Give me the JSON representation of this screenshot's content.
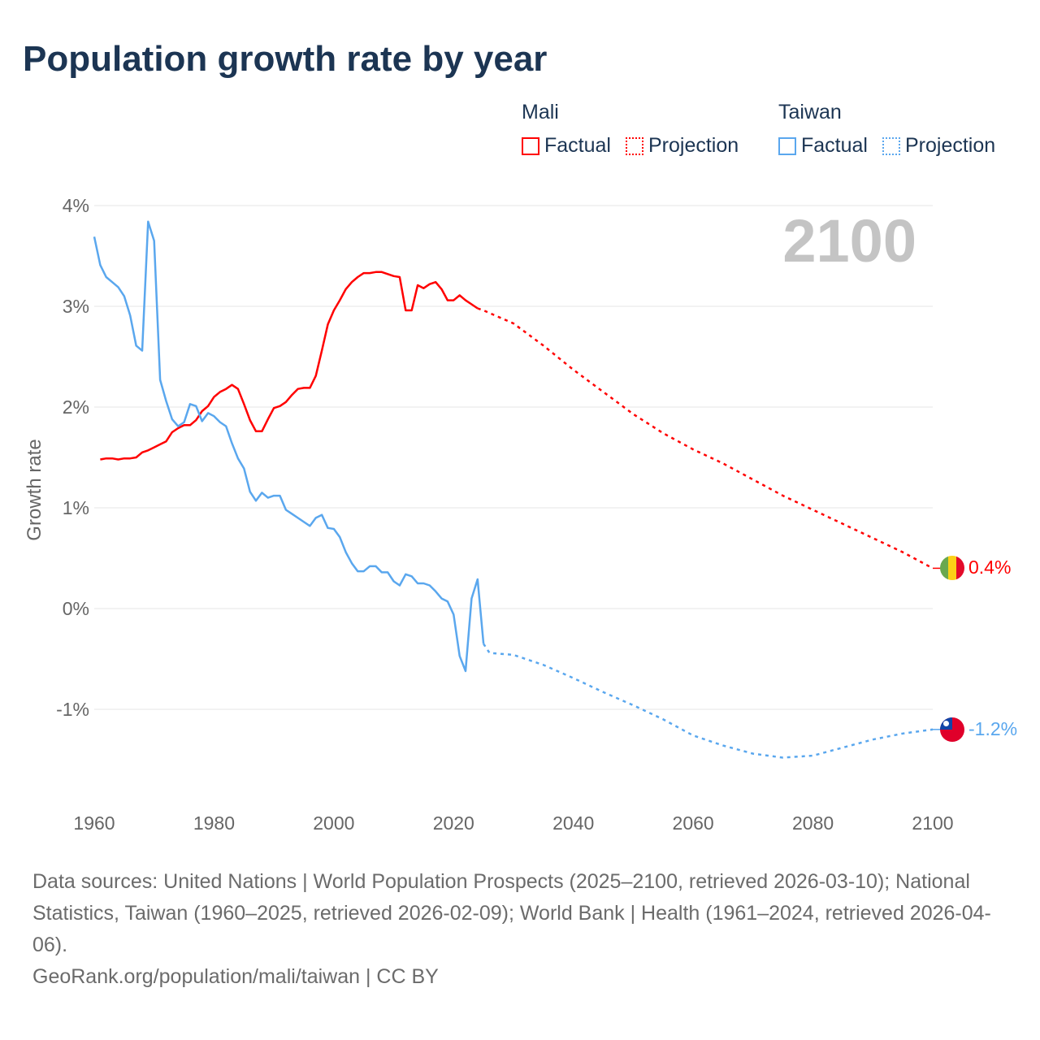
{
  "title": "Population growth rate by year",
  "legend": {
    "groups": [
      {
        "name": "Mali",
        "color": "#ff0000",
        "factual": "Factual",
        "projection": "Projection"
      },
      {
        "name": "Taiwan",
        "color": "#5aa7ee",
        "factual": "Factual",
        "projection": "Projection"
      }
    ]
  },
  "year_watermark": "2100",
  "chart_data": {
    "type": "line",
    "title": "Population growth rate by year",
    "xlabel": "",
    "ylabel": "Growth rate",
    "xlim": [
      1960,
      2100
    ],
    "ylim": [
      -1.9,
      4
    ],
    "x_ticks": [
      "1960",
      "1980",
      "2000",
      "2020",
      "2040",
      "2060",
      "2080",
      "2100"
    ],
    "y_ticks": [
      {
        "value": 4,
        "label": "4%"
      },
      {
        "value": 3,
        "label": "3%"
      },
      {
        "value": 2,
        "label": "2%"
      },
      {
        "value": 1,
        "label": "1%"
      },
      {
        "value": 0,
        "label": "0%"
      },
      {
        "value": -1,
        "label": "-1%"
      }
    ],
    "grid": true,
    "legend_position": "top-right",
    "series": [
      {
        "name": "Mali",
        "color": "#ff0000",
        "end_label": "0.4%",
        "flag": "mali-flag",
        "factual": {
          "x": [
            1961,
            1962,
            1963,
            1964,
            1965,
            1966,
            1967,
            1968,
            1969,
            1970,
            1971,
            1972,
            1973,
            1974,
            1975,
            1976,
            1977,
            1978,
            1979,
            1980,
            1981,
            1982,
            1983,
            1984,
            1985,
            1986,
            1987,
            1988,
            1989,
            1990,
            1991,
            1992,
            1993,
            1994,
            1995,
            1996,
            1997,
            1998,
            1999,
            2000,
            2001,
            2002,
            2003,
            2004,
            2005,
            2006,
            2007,
            2008,
            2009,
            2010,
            2011,
            2012,
            2013,
            2014,
            2015,
            2016,
            2017,
            2018,
            2019,
            2020,
            2021,
            2022,
            2023,
            2024
          ],
          "y": [
            1.48,
            1.49,
            1.49,
            1.48,
            1.49,
            1.49,
            1.5,
            1.55,
            1.57,
            1.6,
            1.63,
            1.66,
            1.75,
            1.79,
            1.82,
            1.82,
            1.87,
            1.96,
            2.01,
            2.1,
            2.15,
            2.18,
            2.22,
            2.18,
            2.03,
            1.87,
            1.76,
            1.76,
            1.88,
            1.99,
            2.01,
            2.05,
            2.12,
            2.18,
            2.19,
            2.19,
            2.31,
            2.56,
            2.82,
            2.96,
            3.06,
            3.17,
            3.24,
            3.29,
            3.33,
            3.33,
            3.34,
            3.34,
            3.32,
            3.3,
            3.29,
            2.96,
            2.96,
            3.21,
            3.18,
            3.22,
            3.24,
            3.17,
            3.06,
            3.06,
            3.11,
            3.06,
            3.02,
            2.98
          ]
        },
        "projection": {
          "x": [
            2024,
            2025,
            2030,
            2035,
            2040,
            2045,
            2050,
            2055,
            2060,
            2065,
            2070,
            2075,
            2080,
            2085,
            2090,
            2095,
            2100
          ],
          "y": [
            2.98,
            2.96,
            2.83,
            2.61,
            2.37,
            2.15,
            1.93,
            1.74,
            1.58,
            1.44,
            1.28,
            1.12,
            0.98,
            0.84,
            0.7,
            0.56,
            0.4
          ]
        }
      },
      {
        "name": "Taiwan",
        "color": "#5aa7ee",
        "end_label": "-1.2%",
        "flag": "taiwan-flag",
        "factual": {
          "x": [
            1960,
            1961,
            1962,
            1963,
            1964,
            1965,
            1966,
            1967,
            1968,
            1969,
            1970,
            1971,
            1972,
            1973,
            1974,
            1975,
            1976,
            1977,
            1978,
            1979,
            1980,
            1981,
            1982,
            1983,
            1984,
            1985,
            1986,
            1987,
            1988,
            1989,
            1990,
            1991,
            1992,
            1993,
            1994,
            1995,
            1996,
            1997,
            1998,
            1999,
            2000,
            2001,
            2002,
            2003,
            2004,
            2005,
            2006,
            2007,
            2008,
            2009,
            2010,
            2011,
            2012,
            2013,
            2014,
            2015,
            2016,
            2017,
            2018,
            2019,
            2020,
            2021,
            2022,
            2023,
            2024,
            2025
          ],
          "y": [
            3.69,
            3.41,
            3.29,
            3.24,
            3.19,
            3.1,
            2.91,
            2.61,
            2.56,
            3.84,
            3.65,
            2.27,
            2.06,
            1.88,
            1.81,
            1.85,
            2.03,
            2.01,
            1.86,
            1.94,
            1.91,
            1.85,
            1.81,
            1.64,
            1.49,
            1.39,
            1.16,
            1.07,
            1.15,
            1.1,
            1.12,
            1.12,
            0.98,
            0.94,
            0.9,
            0.86,
            0.82,
            0.9,
            0.93,
            0.8,
            0.79,
            0.71,
            0.56,
            0.45,
            0.37,
            0.37,
            0.42,
            0.42,
            0.36,
            0.36,
            0.27,
            0.23,
            0.34,
            0.32,
            0.25,
            0.25,
            0.23,
            0.17,
            0.1,
            0.07,
            -0.06,
            -0.47,
            -0.62,
            0.1,
            0.29,
            -0.35
          ]
        },
        "projection": {
          "x": [
            2025,
            2026,
            2030,
            2035,
            2040,
            2045,
            2050,
            2055,
            2060,
            2065,
            2070,
            2075,
            2080,
            2085,
            2090,
            2095,
            2100
          ],
          "y": [
            -0.35,
            -0.44,
            -0.46,
            -0.56,
            -0.69,
            -0.83,
            -0.96,
            -1.1,
            -1.26,
            -1.36,
            -1.44,
            -1.48,
            -1.46,
            -1.38,
            -1.3,
            -1.24,
            -1.2
          ]
        }
      }
    ]
  },
  "footer": {
    "sources": "Data sources: United Nations | World Population Prospects (2025–2100, retrieved 2026-03-10); National Statistics, Taiwan (1960–2025, retrieved 2026-02-09); World Bank | Health (1961–2024, retrieved 2026-04-06).",
    "attribution": "GeoRank.org/population/mali/taiwan | CC BY"
  }
}
